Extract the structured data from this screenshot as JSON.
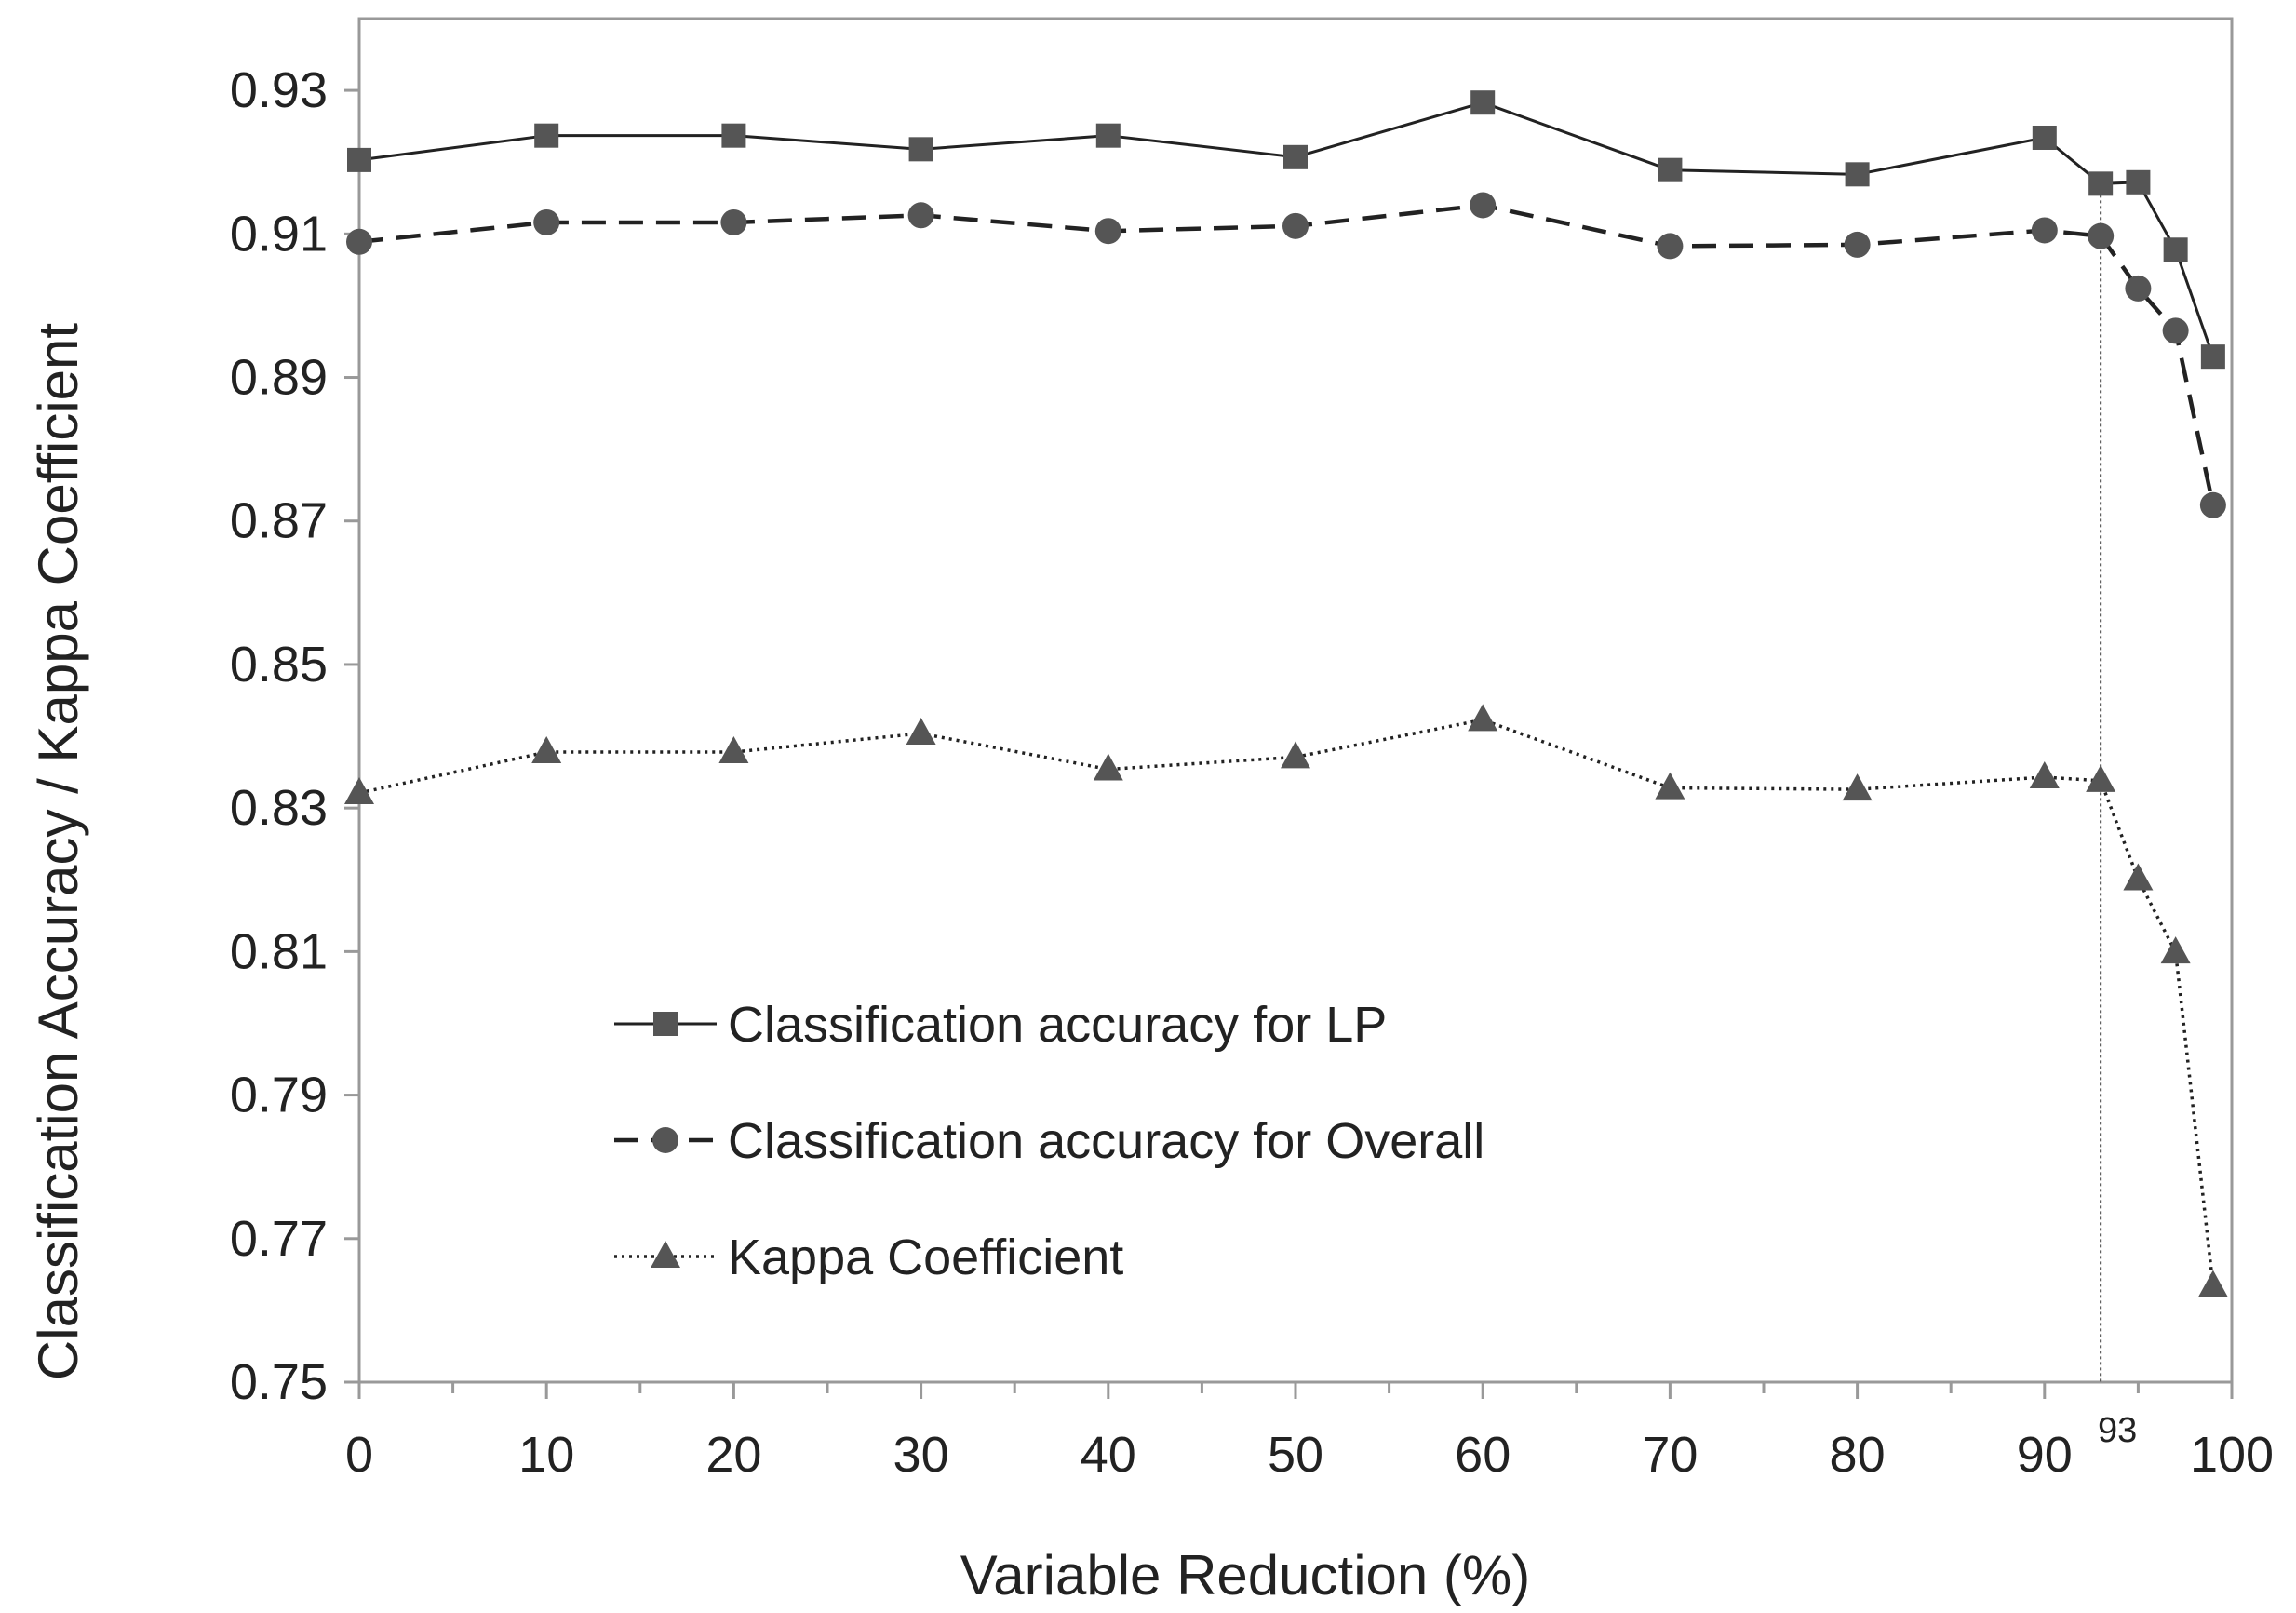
{
  "chart_data": {
    "type": "line",
    "title": "",
    "xlabel": "Variable Reduction (%)",
    "ylabel": "Classification Accuracy / Kappa Coefficient",
    "xlim": [
      0,
      100
    ],
    "ylim": [
      0.75,
      0.94
    ],
    "xticks": [
      0,
      10,
      20,
      30,
      40,
      50,
      60,
      70,
      80,
      90,
      100
    ],
    "xtick_labels": [
      "0",
      "10",
      "20",
      "30",
      "40",
      "50",
      "60",
      "70",
      "80",
      "90",
      "100"
    ],
    "x_minor_step": 5,
    "yticks": [
      0.75,
      0.77,
      0.79,
      0.81,
      0.83,
      0.85,
      0.87,
      0.89,
      0.91,
      0.93
    ],
    "ytick_labels": [
      "0.75",
      "0.77",
      "0.79",
      "0.81",
      "0.83",
      "0.85",
      "0.87",
      "0.89",
      "0.91",
      "0.93"
    ],
    "grid": false,
    "legend_position": "lower-left",
    "annotation": {
      "x": 93,
      "label": "93",
      "style": "dotted-vertical-line"
    },
    "series": [
      {
        "name": "Classification accuracy for LP",
        "marker": "square",
        "line_style": "solid",
        "color": "#555555",
        "x": [
          0,
          10,
          20,
          30,
          40,
          50,
          60,
          70,
          80,
          90,
          93,
          95,
          97,
          99
        ],
        "y": [
          0.9203,
          0.9237,
          0.9237,
          0.9218,
          0.9237,
          0.9207,
          0.9283,
          0.9189,
          0.9183,
          0.9234,
          0.917,
          0.9172,
          0.9078,
          0.8929
        ]
      },
      {
        "name": "Classification accuracy for Overall",
        "marker": "circle",
        "line_style": "dashed",
        "color": "#555555",
        "x": [
          0,
          10,
          20,
          30,
          40,
          50,
          60,
          70,
          80,
          90,
          93,
          95,
          97,
          99
        ],
        "y": [
          0.9089,
          0.9116,
          0.9116,
          0.9126,
          0.9104,
          0.9111,
          0.914,
          0.9083,
          0.9085,
          0.9105,
          0.9097,
          0.9024,
          0.8965,
          0.8722
        ]
      },
      {
        "name": "Kappa Coefficient",
        "marker": "triangle",
        "line_style": "dotted",
        "color": "#555555",
        "x": [
          0,
          10,
          20,
          30,
          40,
          50,
          60,
          70,
          80,
          90,
          93,
          95,
          97,
          99
        ],
        "y": [
          0.8321,
          0.8378,
          0.8378,
          0.8404,
          0.8354,
          0.8371,
          0.8423,
          0.8328,
          0.8326,
          0.8343,
          0.8338,
          0.8201,
          0.8099,
          0.7634
        ]
      }
    ]
  }
}
